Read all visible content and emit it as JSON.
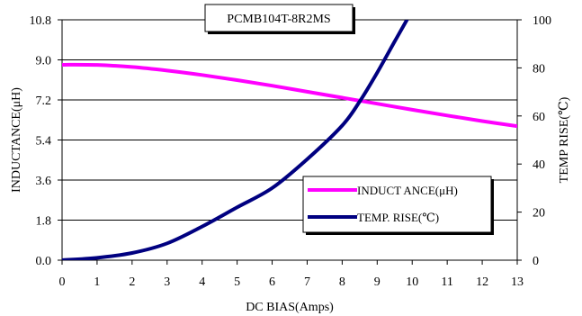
{
  "chart_data": {
    "type": "line",
    "title": "PCMB104T-8R2MS",
    "xlabel": "DC BIAS(Amps)",
    "ylabel_left": "INDUCTANCE(μH)",
    "ylabel_right": "TEMP RISE(℃)",
    "xlim": [
      0,
      13
    ],
    "ylim_left": [
      0,
      10.8
    ],
    "ylim_right": [
      0,
      100
    ],
    "x_ticks": [
      0,
      1,
      2,
      3,
      4,
      5,
      6,
      7,
      8,
      9,
      10,
      11,
      12,
      13
    ],
    "y_left_ticks": [
      "0.0",
      "1.8",
      "3.6",
      "5.4",
      "7.2",
      "9.0",
      "10.8"
    ],
    "y_right_ticks": [
      "0",
      "20",
      "40",
      "60",
      "80",
      "100"
    ],
    "grid": "horizontal",
    "legend_position": "lower-right",
    "series": [
      {
        "name": "INDUCT ANCE(μH)",
        "axis": "left",
        "color": "#ff00ff",
        "x": [
          0,
          1,
          2,
          3,
          4,
          5,
          6,
          7,
          8,
          9,
          10,
          11,
          12,
          13
        ],
        "y": [
          8.78,
          8.77,
          8.68,
          8.52,
          8.32,
          8.09,
          7.84,
          7.57,
          7.3,
          7.03,
          6.76,
          6.5,
          6.25,
          6.02
        ]
      },
      {
        "name": "TEMP. RISE(℃)",
        "axis": "right",
        "color": "#000080",
        "x": [
          0,
          1,
          2,
          3,
          4,
          5,
          6,
          7,
          8,
          8.5,
          9,
          9.5,
          9.85
        ],
        "y": [
          0,
          1,
          3,
          7,
          14,
          22,
          30,
          42,
          56,
          66,
          78,
          91,
          100
        ]
      }
    ]
  }
}
